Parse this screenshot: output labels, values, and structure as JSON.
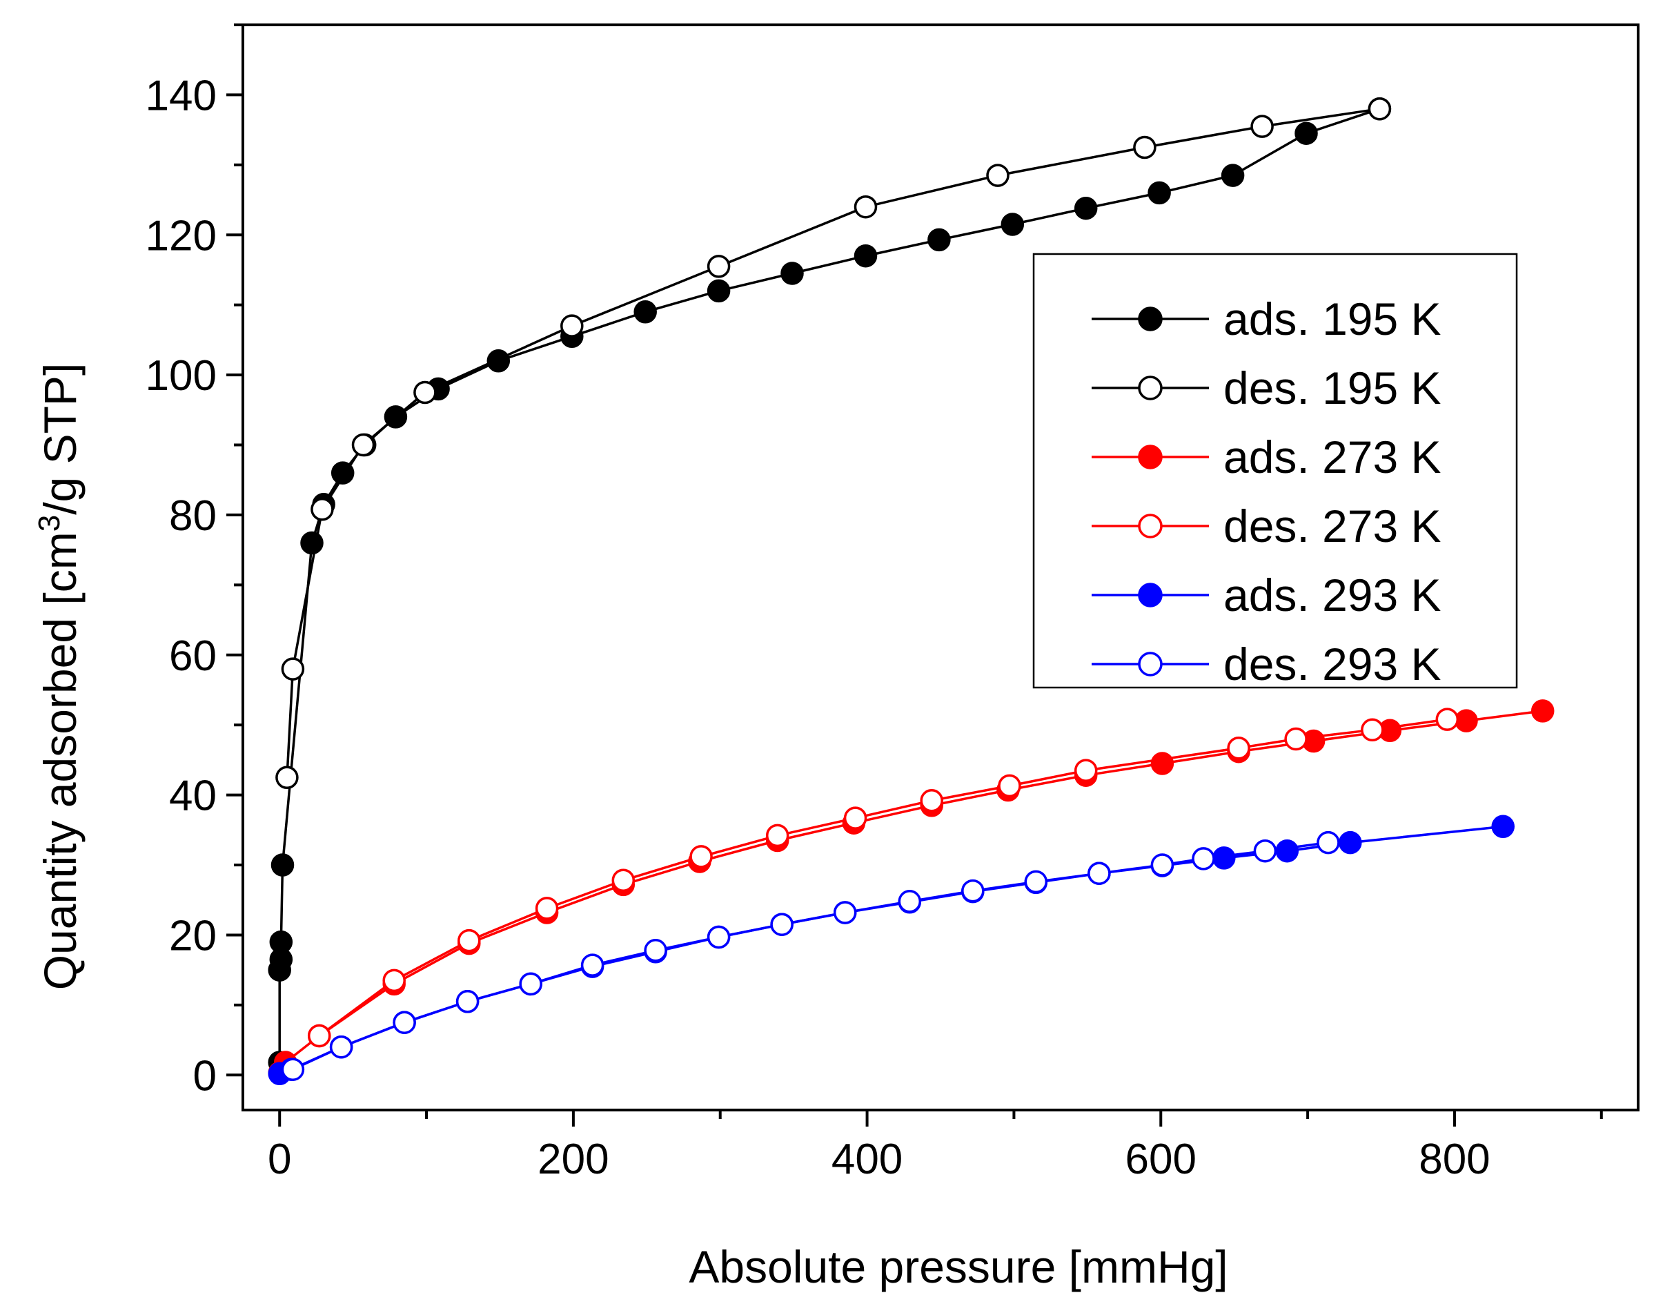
{
  "chart_data": {
    "type": "scatter",
    "xlabel": "Absolute pressure [mmHg]",
    "ylabel": {
      "before": "Quantity adsorbed [cm",
      "sup": "3",
      "after": "/g STP]"
    },
    "xlim": [
      -25,
      925
    ],
    "ylim": [
      -5,
      150
    ],
    "xticks": [
      0,
      200,
      400,
      600,
      800
    ],
    "xminor": [
      100,
      300,
      500,
      700,
      900
    ],
    "yticks": [
      0,
      20,
      40,
      60,
      80,
      100,
      120,
      140
    ],
    "yminor": [
      10,
      30,
      50,
      70,
      90,
      110,
      130,
      150
    ],
    "grid": false,
    "legend_position": "top-right",
    "series": [
      {
        "name": "ads. 195 K",
        "color": "#000000",
        "marker": "filled",
        "points": [
          [
            0,
            1.8
          ],
          [
            0,
            15
          ],
          [
            1,
            16.5
          ],
          [
            1,
            19
          ],
          [
            2,
            30
          ],
          [
            22,
            76
          ],
          [
            30,
            81.5
          ],
          [
            43,
            86
          ],
          [
            58,
            90
          ],
          [
            79,
            94
          ],
          [
            108,
            98
          ],
          [
            149,
            102
          ],
          [
            199,
            105.5
          ],
          [
            249,
            109
          ],
          [
            299,
            112
          ],
          [
            349,
            114.5
          ],
          [
            399,
            117
          ],
          [
            449,
            119.3
          ],
          [
            499,
            121.5
          ],
          [
            549,
            123.8
          ],
          [
            599,
            126
          ],
          [
            649,
            128.5
          ],
          [
            699,
            134.5
          ],
          [
            749,
            138
          ]
        ]
      },
      {
        "name": "des. 195 K",
        "color": "#000000",
        "marker": "open",
        "points": [
          [
            749,
            138
          ],
          [
            669,
            135.5
          ],
          [
            589,
            132.5
          ],
          [
            489,
            128.5
          ],
          [
            399,
            124
          ],
          [
            299,
            115.5
          ],
          [
            199,
            107
          ],
          [
            99,
            97.5
          ],
          [
            57,
            90
          ],
          [
            29,
            80.8
          ],
          [
            9,
            58
          ],
          [
            5,
            42.5
          ]
        ]
      },
      {
        "name": "ads. 273 K",
        "color": "#ff0000",
        "marker": "filled",
        "points": [
          [
            0,
            0.3
          ],
          [
            4,
            1.8
          ],
          [
            27,
            5.6
          ],
          [
            78,
            13
          ],
          [
            129,
            18.8
          ],
          [
            182,
            23.2
          ],
          [
            234,
            27.2
          ],
          [
            286,
            30.5
          ],
          [
            339,
            33.5
          ],
          [
            391,
            36
          ],
          [
            444,
            38.5
          ],
          [
            496,
            40.7
          ],
          [
            549,
            42.8
          ],
          [
            601,
            44.5
          ],
          [
            653,
            46.2
          ],
          [
            704,
            47.7
          ],
          [
            756,
            49.2
          ],
          [
            808,
            50.6
          ],
          [
            860,
            52
          ]
        ]
      },
      {
        "name": "des. 273 K",
        "color": "#ff0000",
        "marker": "open",
        "points": [
          [
            795,
            50.8
          ],
          [
            744,
            49.3
          ],
          [
            692,
            48
          ],
          [
            653,
            46.7
          ],
          [
            549,
            43.5
          ],
          [
            497,
            41.3
          ],
          [
            444,
            39.2
          ],
          [
            392,
            36.7
          ],
          [
            339,
            34.2
          ],
          [
            287,
            31.2
          ],
          [
            234,
            27.8
          ],
          [
            182,
            23.8
          ],
          [
            129,
            19.2
          ],
          [
            78,
            13.5
          ],
          [
            27,
            5.6
          ]
        ]
      },
      {
        "name": "ads. 293 K",
        "color": "#0000ff",
        "marker": "filled",
        "points": [
          [
            0,
            0.2
          ],
          [
            8,
            0.8
          ],
          [
            42,
            4
          ],
          [
            85,
            7.5
          ],
          [
            128,
            10.5
          ],
          [
            171,
            13
          ],
          [
            213,
            15.5
          ],
          [
            256,
            17.6
          ],
          [
            299,
            19.7
          ],
          [
            342,
            21.5
          ],
          [
            385,
            23.2
          ],
          [
            429,
            24.7
          ],
          [
            472,
            26.2
          ],
          [
            515,
            27.5
          ],
          [
            558,
            28.8
          ],
          [
            601,
            29.9
          ],
          [
            643,
            31
          ],
          [
            686,
            32
          ],
          [
            729,
            33.2
          ],
          [
            833,
            35.5
          ]
        ]
      },
      {
        "name": "des. 293 K",
        "color": "#0000ff",
        "marker": "open",
        "points": [
          [
            714,
            33.2
          ],
          [
            671,
            32
          ],
          [
            629,
            30.9
          ],
          [
            601,
            30
          ],
          [
            558,
            28.8
          ],
          [
            515,
            27.6
          ],
          [
            472,
            26.3
          ],
          [
            429,
            24.8
          ],
          [
            385,
            23.2
          ],
          [
            342,
            21.5
          ],
          [
            299,
            19.7
          ],
          [
            256,
            17.8
          ],
          [
            213,
            15.7
          ],
          [
            171,
            13
          ],
          [
            128,
            10.5
          ],
          [
            85,
            7.5
          ],
          [
            42,
            4
          ],
          [
            9,
            0.8
          ]
        ]
      }
    ]
  }
}
